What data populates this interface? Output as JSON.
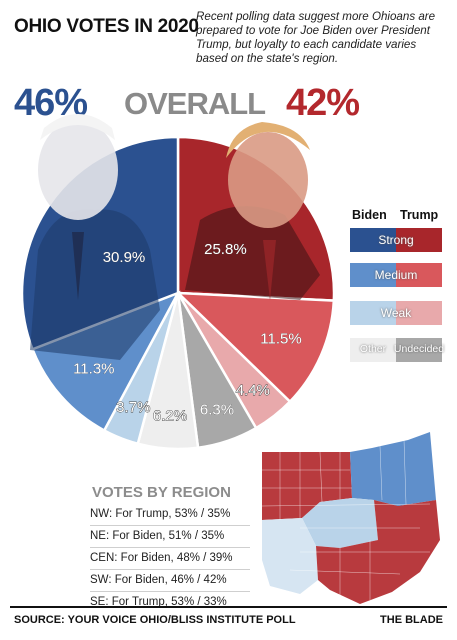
{
  "header": {
    "title": "OHIO VOTES IN 2020",
    "intro": "Recent polling data suggest more Ohioans are prepared to vote for Joe Biden over President Trump, but loyalty to each candidate varies based on the state's region."
  },
  "overall": {
    "biden": "46%",
    "label": "OVERALL",
    "trump": "42%"
  },
  "colors": {
    "biden_strong": "#2b5190",
    "biden_medium": "#5f8fcb",
    "biden_weak": "#b9d3e9",
    "trump_strong": "#a8262b",
    "trump_medium": "#d9585c",
    "trump_weak": "#e8a9ab",
    "other": "#eeeeee",
    "undecided": "#a8a8a8"
  },
  "legend": {
    "biden": "Biden",
    "trump": "Trump",
    "strong": "Strong",
    "medium": "Medium",
    "weak": "Weak",
    "other": "Other",
    "undecided": "Undecided"
  },
  "chart_data": {
    "type": "pie",
    "title": "",
    "slices": [
      {
        "label": "25.8%",
        "value": 25.8,
        "group": "Trump",
        "level": "Strong",
        "color": "#a8262b"
      },
      {
        "label": "11.5%",
        "value": 11.5,
        "group": "Trump",
        "level": "Medium",
        "color": "#d9585c"
      },
      {
        "label": "4.4%",
        "value": 4.4,
        "group": "Trump",
        "level": "Weak",
        "color": "#e8a9ab"
      },
      {
        "label": "6.3%",
        "value": 6.3,
        "group": "Undecided",
        "level": "",
        "color": "#a8a8a8"
      },
      {
        "label": "6.2%",
        "value": 6.2,
        "group": "Other",
        "level": "",
        "color": "#eeeeee"
      },
      {
        "label": "3.7%",
        "value": 3.7,
        "group": "Biden",
        "level": "Weak",
        "color": "#b9d3e9"
      },
      {
        "label": "11.3%",
        "value": 11.3,
        "group": "Biden",
        "level": "Medium",
        "color": "#5f8fcb"
      },
      {
        "label": "30.9%",
        "value": 30.9,
        "group": "Biden",
        "level": "Strong",
        "color": "#2b5190"
      }
    ]
  },
  "regions": {
    "title": "VOTES BY REGION",
    "lines": [
      "NW: For Trump, 53% / 35%",
      "NE: For Biden, 51% / 35%",
      "CEN: For Biden, 48% / 39%",
      "SW: For Biden, 46% / 42%",
      "SE: For Trump, 53% / 33%"
    ]
  },
  "footer": {
    "source": "SOURCE: YOUR VOICE OHIO/BLISS INSTITUTE POLL",
    "brand": "THE BLADE"
  }
}
